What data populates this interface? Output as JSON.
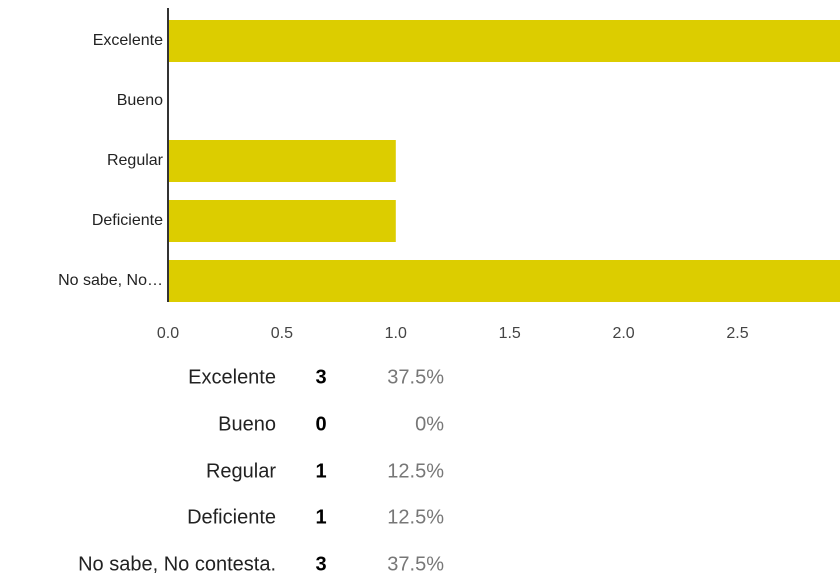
{
  "chart_data": {
    "type": "bar",
    "orientation": "horizontal",
    "categories": [
      "Excelente",
      "Bueno",
      "Regular",
      "Deficiente",
      "No sabe, No…"
    ],
    "values": [
      3,
      0,
      1,
      1,
      3
    ],
    "color": "#dccd00",
    "xlim": [
      0,
      2.95
    ],
    "xticks": [
      {
        "value": 0,
        "label": "0.0"
      },
      0.5,
      {
        "value": 1,
        "label": "1.0"
      },
      1.5,
      {
        "value": 2,
        "label": "2.0"
      },
      2.5
    ]
  },
  "table": {
    "rows": [
      [
        "Excelente",
        3,
        "37.5%"
      ],
      [
        "Bueno",
        0,
        "0%"
      ],
      [
        "Regular",
        1,
        "12.5%"
      ],
      [
        "Deficiente",
        1,
        "12.5%"
      ],
      [
        "No sabe, No contesta.",
        3,
        "37.5%"
      ]
    ]
  }
}
